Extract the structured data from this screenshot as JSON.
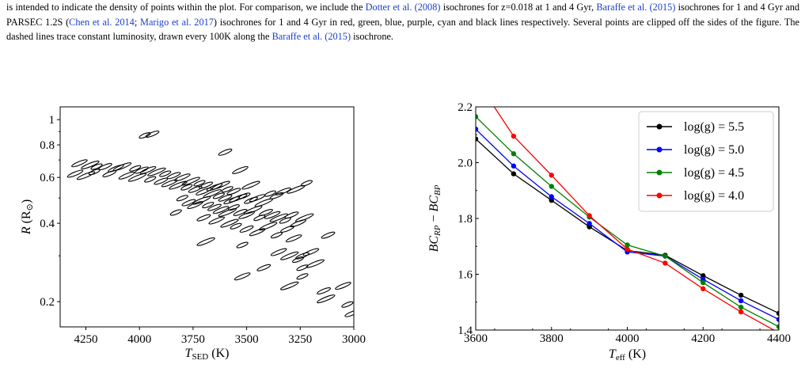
{
  "caption": {
    "segments": [
      {
        "text": "is intended to indicate the density of points within the plot. For comparison, we include the ",
        "link": false
      },
      {
        "text": "Dotter et al. (2008)",
        "link": true
      },
      {
        "text": " isochrones for z=0.018 at 1 and 4 Gyr, ",
        "link": false
      },
      {
        "text": "Baraffe et al. (2015)",
        "link": true
      },
      {
        "text": " isochrones for 1 and 4 Gyr and PARSEC 1.2S (",
        "link": false
      },
      {
        "text": "Chen et al. 2014",
        "link": true
      },
      {
        "text": "; ",
        "link": false
      },
      {
        "text": "Marigo et al. 2017",
        "link": true
      },
      {
        "text": ") isochrones for 1 and 4 Gyr in red, green, blue, purple, cyan and black lines respectively. Several points are clipped off the sides of the figure. The dashed lines trace constant luminosity, drawn every 100K along the ",
        "link": false
      },
      {
        "text": "Baraffe et al. (2015)",
        "link": true
      },
      {
        "text": " isochrone.",
        "link": false
      }
    ],
    "link_color": "#1a3fc9"
  },
  "chart_data": [
    {
      "type": "scatter",
      "title": "",
      "xlabel_main": "T",
      "xlabel_sub": "SED",
      "xlabel_unit": " (K)",
      "ylabel_main": "R",
      "ylabel_unit_open": " (R",
      "ylabel_unit_sub": "⊙",
      "ylabel_unit_close": ")",
      "x_inverted": true,
      "xlim": [
        4370,
        3000
      ],
      "ylim_log": [
        0.16,
        1.12
      ],
      "x_ticks": [
        4250,
        4000,
        3750,
        3500,
        3250,
        3000
      ],
      "x_tick_labels": [
        "4250",
        "4000",
        "3750",
        "3500",
        "3250",
        "3000"
      ],
      "y_ticks": [
        0.2,
        0.4,
        0.6,
        0.8,
        1.0
      ],
      "y_tick_labels": [
        "0.2",
        "0.4",
        "0.6",
        "0.8",
        "1"
      ],
      "marker": "ellipse-outline",
      "points": [
        [
          3975,
          0.87
        ],
        [
          3940,
          0.88
        ],
        [
          4280,
          0.68
        ],
        [
          4230,
          0.67
        ],
        [
          4200,
          0.66
        ],
        [
          4160,
          0.66
        ],
        [
          4110,
          0.65
        ],
        [
          4080,
          0.66
        ],
        [
          4020,
          0.65
        ],
        [
          3990,
          0.64
        ],
        [
          3960,
          0.64
        ],
        [
          3920,
          0.63
        ],
        [
          3880,
          0.62
        ],
        [
          3840,
          0.61
        ],
        [
          3800,
          0.6
        ],
        [
          3760,
          0.58
        ],
        [
          3720,
          0.57
        ],
        [
          3690,
          0.56
        ],
        [
          3650,
          0.55
        ],
        [
          3620,
          0.56
        ],
        [
          3590,
          0.54
        ],
        [
          3560,
          0.53
        ],
        [
          4300,
          0.62
        ],
        [
          4250,
          0.61
        ],
        [
          4210,
          0.63
        ],
        [
          4140,
          0.62
        ],
        [
          4060,
          0.61
        ],
        [
          4010,
          0.6
        ],
        [
          3950,
          0.59
        ],
        [
          3900,
          0.58
        ],
        [
          3860,
          0.57
        ],
        [
          3820,
          0.56
        ],
        [
          3780,
          0.55
        ],
        [
          3740,
          0.54
        ],
        [
          3700,
          0.53
        ],
        [
          3660,
          0.52
        ],
        [
          3630,
          0.51
        ],
        [
          3600,
          0.5
        ],
        [
          3570,
          0.49
        ],
        [
          3540,
          0.5
        ],
        [
          3510,
          0.51
        ],
        [
          3480,
          0.49
        ],
        [
          3450,
          0.5
        ],
        [
          3420,
          0.48
        ],
        [
          3390,
          0.52
        ],
        [
          3360,
          0.51
        ],
        [
          3330,
          0.53
        ],
        [
          3270,
          0.54
        ],
        [
          3220,
          0.57
        ],
        [
          3600,
          0.75
        ],
        [
          3530,
          0.64
        ],
        [
          3480,
          0.56
        ],
        [
          3800,
          0.5
        ],
        [
          3770,
          0.48
        ],
        [
          3740,
          0.47
        ],
        [
          3710,
          0.49
        ],
        [
          3680,
          0.47
        ],
        [
          3650,
          0.46
        ],
        [
          3620,
          0.45
        ],
        [
          3590,
          0.44
        ],
        [
          3560,
          0.46
        ],
        [
          3530,
          0.44
        ],
        [
          3500,
          0.43
        ],
        [
          3470,
          0.45
        ],
        [
          3440,
          0.42
        ],
        [
          3410,
          0.44
        ],
        [
          3380,
          0.43
        ],
        [
          3350,
          0.42
        ],
        [
          3320,
          0.41
        ],
        [
          3290,
          0.43
        ],
        [
          3260,
          0.4
        ],
        [
          3230,
          0.42
        ],
        [
          3830,
          0.44
        ],
        [
          3700,
          0.42
        ],
        [
          3640,
          0.41
        ],
        [
          3580,
          0.4
        ],
        [
          3550,
          0.39
        ],
        [
          3500,
          0.38
        ],
        [
          3450,
          0.37
        ],
        [
          3400,
          0.39
        ],
        [
          3360,
          0.36
        ],
        [
          3310,
          0.38
        ],
        [
          3280,
          0.35
        ],
        [
          3690,
          0.34
        ],
        [
          3520,
          0.33
        ],
        [
          3120,
          0.36
        ],
        [
          3350,
          0.31
        ],
        [
          3300,
          0.3
        ],
        [
          3260,
          0.29
        ],
        [
          3240,
          0.3
        ],
        [
          3200,
          0.31
        ],
        [
          3180,
          0.28
        ],
        [
          3240,
          0.27
        ],
        [
          3420,
          0.27
        ],
        [
          3520,
          0.25
        ],
        [
          3300,
          0.23
        ],
        [
          3240,
          0.25
        ],
        [
          3140,
          0.22
        ],
        [
          3050,
          0.23
        ],
        [
          3130,
          0.205
        ],
        [
          3030,
          0.195
        ],
        [
          3010,
          0.18
        ]
      ]
    },
    {
      "type": "line",
      "title": "",
      "xlabel_main": "T",
      "xlabel_sub": "eff",
      "xlabel_unit": " (K)",
      "ylabel_a": "BC",
      "ylabel_a_sub": "RP",
      "ylabel_minus": " − ",
      "ylabel_b": "BC",
      "ylabel_b_sub": "BP",
      "xlim": [
        3600,
        4400
      ],
      "ylim": [
        1.4,
        2.2
      ],
      "x_ticks": [
        3600,
        3800,
        4000,
        4200,
        4400
      ],
      "x_tick_labels": [
        "3600",
        "3800",
        "4000",
        "4200",
        "4400"
      ],
      "y_ticks": [
        1.4,
        1.6,
        1.8,
        2.0,
        2.2
      ],
      "y_tick_labels": [
        "1.4",
        "1.6",
        "1.8",
        "2.0",
        "2.2"
      ],
      "legend_position": "top-right",
      "x": [
        3600,
        3700,
        3800,
        3900,
        4000,
        4100,
        4200,
        4300,
        4400
      ],
      "series": [
        {
          "name": "log(g) = 5.5",
          "label_main": "log(g) = 5.5",
          "color": "#000000",
          "values": [
            2.085,
            1.96,
            1.865,
            1.77,
            1.685,
            1.668,
            1.595,
            1.525,
            1.46
          ]
        },
        {
          "name": "log(g) = 5.0",
          "label_main": "log(g) = 5.0",
          "color": "#0000ff",
          "values": [
            2.12,
            1.988,
            1.878,
            1.782,
            1.68,
            1.665,
            1.582,
            1.505,
            1.438
          ]
        },
        {
          "name": "log(g) = 4.5",
          "label_main": "log(g) = 4.5",
          "color": "#008000",
          "values": [
            2.165,
            2.032,
            1.915,
            1.805,
            1.705,
            1.665,
            1.57,
            1.482,
            1.412
          ]
        },
        {
          "name": "log(g) = 4.0",
          "label_main": "log(g) = 4.0",
          "color": "#ff0000",
          "values": [
            2.3,
            2.095,
            1.955,
            1.81,
            1.69,
            1.64,
            1.548,
            1.465,
            1.39
          ]
        }
      ]
    }
  ]
}
